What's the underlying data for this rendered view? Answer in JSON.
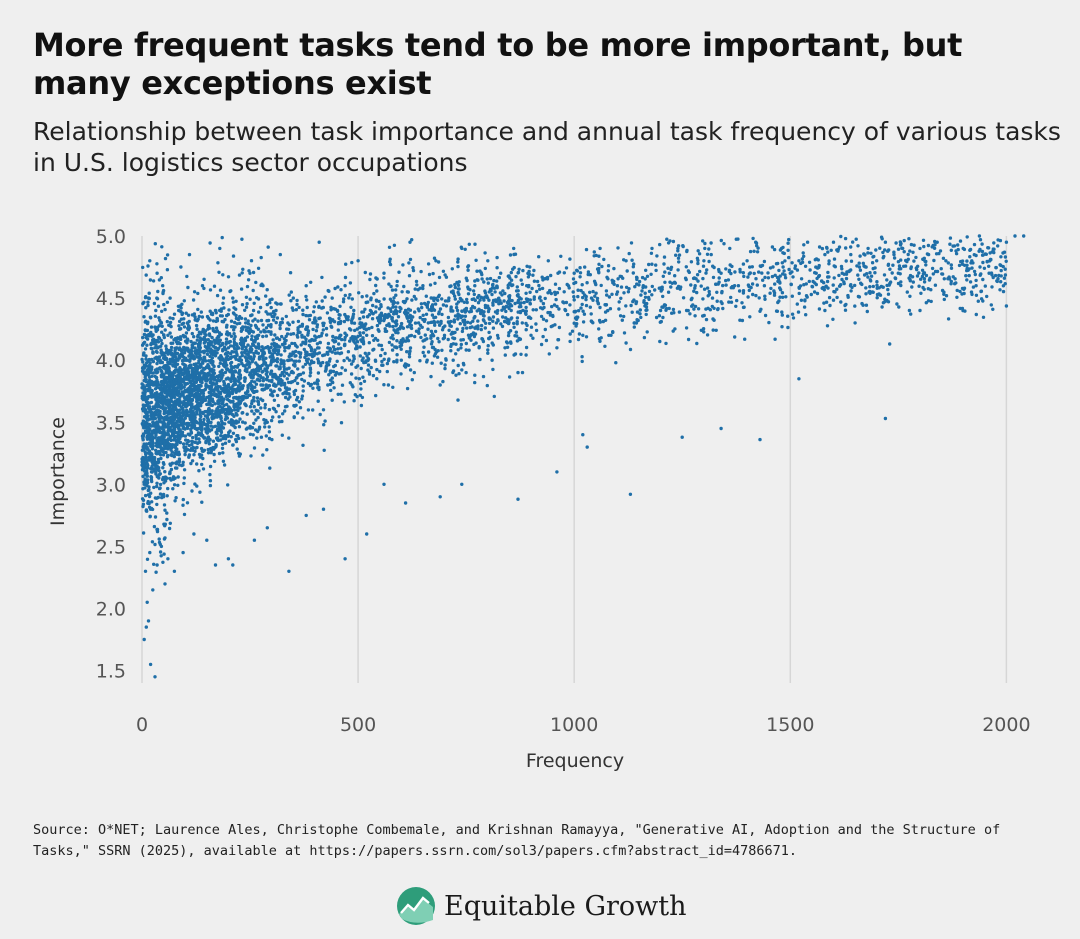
{
  "header": {
    "title": "More frequent tasks tend to be more important, but many exceptions exist",
    "subtitle": "Relationship between task importance and annual task frequency of various tasks in U.S. logistics sector occupations"
  },
  "footer": {
    "source": "Source: O*NET; Laurence Ales, Christophe Combemale, and Krishnan Ramayya, \"Generative AI, Adoption and the Structure of Tasks,\" SSRN (2025), available at https://papers.ssrn.com/sol3/papers.cfm?abstract_id=4786671.",
    "brand_name": "Equitable Growth",
    "brand_icon": "equitable-growth-logo-icon"
  },
  "chart_data": {
    "type": "scatter",
    "title": "More frequent tasks tend to be more important, but many exceptions exist",
    "subtitle": "Relationship between task importance and annual task frequency of various tasks in U.S. logistics sector occupations",
    "xlabel": "Frequency",
    "ylabel": "Importance",
    "xlim": [
      0,
      2050
    ],
    "ylim": [
      1.4,
      5.0
    ],
    "xticks": [
      0,
      500,
      1000,
      1500,
      2000
    ],
    "yticks": [
      1.5,
      2.0,
      2.5,
      3.0,
      3.5,
      4.0,
      4.5,
      5.0
    ],
    "ytick_labels": [
      "1.5",
      "2.0",
      "2.5",
      "3.0",
      "3.5",
      "4.0",
      "4.5",
      "5.0"
    ],
    "grid": "vertical",
    "marker_color": "#1f6fa8",
    "series": [
      {
        "name": "",
        "points": [
          [
            5,
            1.75
          ],
          [
            10,
            1.85
          ],
          [
            15,
            1.9
          ],
          [
            20,
            1.55
          ],
          [
            30,
            1.45
          ],
          [
            12,
            2.05
          ],
          [
            25,
            2.15
          ],
          [
            8,
            2.3
          ],
          [
            18,
            2.45
          ],
          [
            35,
            2.35
          ],
          [
            45,
            2.5
          ],
          [
            60,
            2.4
          ],
          [
            75,
            2.3
          ],
          [
            95,
            2.45
          ],
          [
            120,
            2.6
          ],
          [
            150,
            2.55
          ],
          [
            170,
            2.35
          ],
          [
            200,
            2.4
          ],
          [
            210,
            2.35
          ],
          [
            260,
            2.55
          ],
          [
            290,
            2.65
          ],
          [
            340,
            2.3
          ],
          [
            380,
            2.75
          ],
          [
            420,
            2.8
          ],
          [
            470,
            2.4
          ],
          [
            520,
            2.6
          ],
          [
            560,
            3.0
          ],
          [
            610,
            2.85
          ],
          [
            690,
            2.9
          ],
          [
            740,
            3.0
          ],
          [
            870,
            2.88
          ],
          [
            960,
            3.1
          ],
          [
            1020,
            3.4
          ],
          [
            1030,
            3.3
          ],
          [
            1130,
            2.92
          ],
          [
            1250,
            3.38
          ],
          [
            1340,
            3.45
          ],
          [
            1430,
            3.36
          ],
          [
            1520,
            3.85
          ],
          [
            1720,
            3.53
          ],
          [
            1730,
            4.13
          ],
          [
            5,
            3.0
          ],
          [
            6,
            3.3
          ],
          [
            8,
            3.6
          ],
          [
            10,
            3.9
          ],
          [
            12,
            4.2
          ],
          [
            15,
            4.5
          ],
          [
            18,
            4.8
          ],
          [
            20,
            2.8
          ],
          [
            22,
            3.1
          ],
          [
            25,
            3.5
          ],
          [
            28,
            3.8
          ],
          [
            30,
            4.1
          ],
          [
            32,
            4.4
          ],
          [
            35,
            4.7
          ],
          [
            38,
            3.2
          ],
          [
            40,
            3.7
          ],
          [
            42,
            4.0
          ],
          [
            45,
            4.3
          ],
          [
            48,
            4.6
          ],
          [
            50,
            2.9
          ],
          [
            55,
            3.4
          ],
          [
            58,
            3.9
          ],
          [
            60,
            4.2
          ],
          [
            65,
            4.5
          ],
          [
            70,
            3.3
          ],
          [
            75,
            3.8
          ],
          [
            80,
            4.1
          ],
          [
            85,
            4.4
          ],
          [
            90,
            4.75
          ],
          [
            95,
            3.6
          ],
          [
            100,
            4.0
          ],
          [
            105,
            4.3
          ],
          [
            110,
            4.85
          ],
          [
            115,
            3.5
          ],
          [
            120,
            3.9
          ],
          [
            130,
            4.2
          ],
          [
            140,
            4.6
          ],
          [
            150,
            3.7
          ],
          [
            160,
            4.0
          ],
          [
            170,
            4.4
          ],
          [
            180,
            4.9
          ],
          [
            190,
            3.8
          ],
          [
            200,
            4.1
          ],
          [
            210,
            4.5
          ],
          [
            220,
            3.6
          ],
          [
            230,
            4.0
          ],
          [
            240,
            4.3
          ],
          [
            250,
            4.7
          ],
          [
            260,
            3.9
          ],
          [
            270,
            4.2
          ],
          [
            280,
            4.6
          ],
          [
            290,
            3.5
          ],
          [
            300,
            4.0
          ],
          [
            310,
            4.4
          ],
          [
            320,
            4.85
          ],
          [
            330,
            3.8
          ],
          [
            340,
            4.1
          ],
          [
            350,
            4.5
          ],
          [
            360,
            3.7
          ],
          [
            370,
            4.2
          ],
          [
            380,
            4.6
          ],
          [
            390,
            3.9
          ],
          [
            400,
            4.3
          ],
          [
            410,
            4.95
          ],
          [
            420,
            3.6
          ],
          [
            430,
            4.1
          ],
          [
            440,
            4.5
          ],
          [
            450,
            3.9
          ],
          [
            460,
            4.2
          ],
          [
            470,
            4.6
          ],
          [
            480,
            4.0
          ],
          [
            490,
            4.4
          ],
          [
            500,
            4.8
          ],
          [
            510,
            3.7
          ],
          [
            520,
            4.2
          ],
          [
            530,
            4.5
          ],
          [
            540,
            4.0
          ],
          [
            550,
            4.3
          ],
          [
            560,
            4.7
          ],
          [
            570,
            3.8
          ],
          [
            580,
            4.2
          ],
          [
            590,
            4.6
          ],
          [
            600,
            4.0
          ],
          [
            610,
            4.4
          ],
          [
            620,
            4.95
          ],
          [
            630,
            3.9
          ],
          [
            640,
            4.3
          ],
          [
            650,
            4.6
          ],
          [
            660,
            4.0
          ],
          [
            670,
            4.4
          ],
          [
            680,
            4.8
          ],
          [
            690,
            3.8
          ],
          [
            700,
            4.2
          ],
          [
            710,
            4.5
          ],
          [
            720,
            4.0
          ],
          [
            730,
            4.4
          ],
          [
            740,
            4.9
          ],
          [
            750,
            3.9
          ],
          [
            760,
            4.3
          ],
          [
            770,
            4.6
          ],
          [
            780,
            4.1
          ],
          [
            790,
            4.5
          ],
          [
            800,
            4.8
          ],
          [
            810,
            4.0
          ],
          [
            820,
            4.3
          ],
          [
            830,
            4.7
          ],
          [
            840,
            4.1
          ],
          [
            850,
            4.5
          ],
          [
            860,
            4.9
          ],
          [
            870,
            3.9
          ],
          [
            880,
            4.3
          ],
          [
            890,
            4.6
          ],
          [
            900,
            4.2
          ],
          [
            920,
            4.5
          ],
          [
            940,
            4.8
          ],
          [
            960,
            4.1
          ],
          [
            980,
            4.4
          ],
          [
            1000,
            4.7
          ],
          [
            1020,
            4.2
          ],
          [
            1040,
            4.5
          ],
          [
            1060,
            4.9
          ],
          [
            1080,
            4.2
          ],
          [
            1100,
            4.6
          ],
          [
            1120,
            4.8
          ],
          [
            1140,
            4.3
          ],
          [
            1160,
            4.6
          ],
          [
            1180,
            4.9
          ],
          [
            1200,
            4.4
          ],
          [
            1220,
            4.7
          ],
          [
            1240,
            4.9
          ],
          [
            1260,
            4.4
          ],
          [
            1280,
            4.6
          ],
          [
            1300,
            4.8
          ],
          [
            1320,
            4.5
          ],
          [
            1340,
            4.7
          ],
          [
            1360,
            4.9
          ],
          [
            1380,
            4.6
          ],
          [
            1400,
            4.8
          ],
          [
            1420,
            4.95
          ],
          [
            1440,
            4.6
          ],
          [
            1460,
            4.75
          ],
          [
            1480,
            4.9
          ],
          [
            1500,
            4.7
          ],
          [
            1520,
            4.8
          ],
          [
            1540,
            4.95
          ],
          [
            1560,
            4.7
          ],
          [
            1580,
            4.85
          ],
          [
            1600,
            4.95
          ],
          [
            1620,
            4.7
          ],
          [
            1640,
            4.85
          ],
          [
            1660,
            4.75
          ],
          [
            1680,
            4.9
          ],
          [
            1700,
            4.8
          ],
          [
            1720,
            4.95
          ],
          [
            1740,
            4.85
          ],
          [
            1760,
            4.9
          ],
          [
            1780,
            4.75
          ],
          [
            1800,
            4.9
          ],
          [
            1820,
            4.85
          ],
          [
            1840,
            4.95
          ],
          [
            1860,
            4.8
          ],
          [
            1880,
            4.92
          ],
          [
            1900,
            4.9
          ],
          [
            1920,
            4.8
          ],
          [
            1940,
            4.97
          ],
          [
            1960,
            4.7
          ],
          [
            1980,
            4.92
          ],
          [
            2000,
            4.95
          ],
          [
            2020,
            5.0
          ],
          [
            2040,
            5.0
          ],
          [
            1930,
            4.6
          ],
          [
            1800,
            4.4
          ],
          [
            1650,
            4.3
          ],
          [
            1690,
            4.55
          ],
          [
            1580,
            4.4
          ]
        ]
      }
    ],
    "density_note_points": 0
  }
}
